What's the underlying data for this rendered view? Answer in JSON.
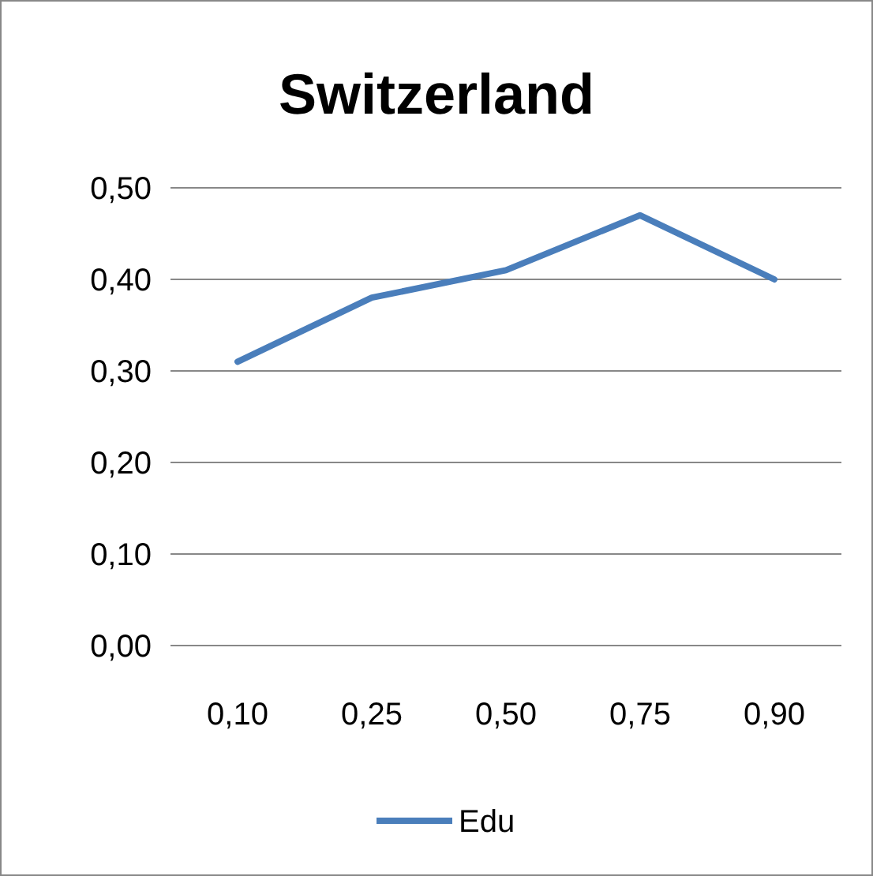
{
  "chart_data": {
    "type": "line",
    "title": "Switzerland",
    "categories": [
      "0,10",
      "0,25",
      "0,50",
      "0,75",
      "0,90"
    ],
    "series": [
      {
        "name": "Edu",
        "color": "#4a7ebb",
        "values": [
          0.31,
          0.38,
          0.41,
          0.47,
          0.4
        ]
      }
    ],
    "ylim": [
      0,
      0.5
    ],
    "yticks": [
      {
        "value": 0,
        "label": "0,00"
      },
      {
        "value": 0.1,
        "label": "0,10"
      },
      {
        "value": 0.2,
        "label": "0,20"
      },
      {
        "value": 0.3,
        "label": "0,30"
      },
      {
        "value": 0.4,
        "label": "0,40"
      },
      {
        "value": 0.5,
        "label": "0,50"
      }
    ],
    "grid": "y",
    "legend": "bottom",
    "marker": "none",
    "line_style": "solid"
  }
}
